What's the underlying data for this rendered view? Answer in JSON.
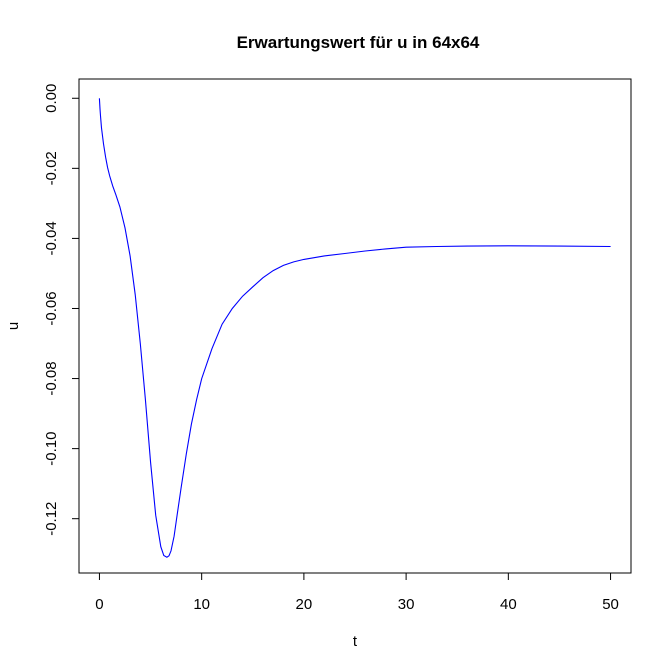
{
  "chart_data": {
    "type": "line",
    "title": "Erwartungswert für u in 64x64",
    "xlabel": "t",
    "ylabel": "u",
    "xlim": [
      -2,
      52
    ],
    "ylim": [
      -0.1355,
      0.0055
    ],
    "xticks": [
      0,
      10,
      20,
      30,
      40,
      50
    ],
    "yticks": [
      0.0,
      -0.02,
      -0.04,
      -0.06,
      -0.08,
      -0.1,
      -0.12
    ],
    "xtick_labels": [
      "0",
      "10",
      "20",
      "30",
      "40",
      "50"
    ],
    "ytick_labels": [
      "0.00",
      "-0.02",
      "-0.04",
      "-0.06",
      "-0.08",
      "-0.10",
      "-0.12"
    ],
    "grid": false,
    "line_color": "#0000ff",
    "series": [
      {
        "x": [
          0,
          0.05,
          0.1,
          0.2,
          0.4,
          0.6,
          0.8,
          1.0,
          1.3,
          1.6,
          2.0,
          2.5,
          3.0,
          3.5,
          4.0,
          4.5,
          5.0,
          5.5,
          6.0,
          6.3,
          6.6,
          6.8,
          7.0,
          7.3,
          7.6,
          8.0,
          8.5,
          9.0,
          9.5,
          10.0,
          11.0,
          12.0,
          13.0,
          14.0,
          15.0,
          16.0,
          17.0,
          18.0,
          19.0,
          20.0,
          21.0,
          22.0,
          24.0,
          26.0,
          28.0,
          30.0,
          33.0,
          36.0,
          40.0,
          45.0,
          50.0
        ],
        "y": [
          0.0,
          -0.003,
          -0.005,
          -0.0085,
          -0.013,
          -0.0168,
          -0.0198,
          -0.0222,
          -0.025,
          -0.0275,
          -0.031,
          -0.037,
          -0.045,
          -0.056,
          -0.07,
          -0.086,
          -0.104,
          -0.119,
          -0.128,
          -0.1305,
          -0.131,
          -0.1306,
          -0.1292,
          -0.125,
          -0.119,
          -0.111,
          -0.1015,
          -0.093,
          -0.086,
          -0.08,
          -0.0715,
          -0.0645,
          -0.06,
          -0.0565,
          -0.0538,
          -0.0512,
          -0.0492,
          -0.0477,
          -0.0467,
          -0.046,
          -0.0455,
          -0.045,
          -0.0443,
          -0.0436,
          -0.043,
          -0.0425,
          -0.0423,
          -0.0422,
          -0.0421,
          -0.0422,
          -0.0423
        ]
      }
    ]
  }
}
